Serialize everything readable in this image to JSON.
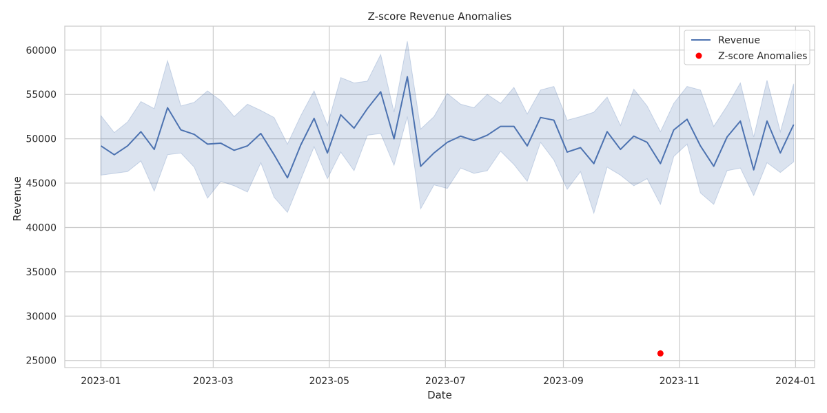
{
  "chart_data": {
    "type": "line",
    "title": "Z-score Revenue Anomalies",
    "xlabel": "Date",
    "ylabel": "Revenue",
    "ylim": [
      24200,
      62700
    ],
    "xlim": [
      "2022-12-13",
      "2024-01-11"
    ],
    "grid": true,
    "legend_position": "top-right",
    "colors": {
      "line": "#4c72b0",
      "band": "#4c72b0",
      "anomaly": "#ff0000",
      "frame": "#cccccc",
      "grid": "#cccccc"
    },
    "x_ticks": [
      {
        "value": "2023-01-01",
        "label": "2023-01"
      },
      {
        "value": "2023-03-01",
        "label": "2023-03"
      },
      {
        "value": "2023-05-01",
        "label": "2023-05"
      },
      {
        "value": "2023-07-01",
        "label": "2023-07"
      },
      {
        "value": "2023-09-01",
        "label": "2023-09"
      },
      {
        "value": "2023-11-01",
        "label": "2023-11"
      },
      {
        "value": "2024-01-01",
        "label": "2024-01"
      }
    ],
    "y_ticks": [
      {
        "value": 25000,
        "label": "25000"
      },
      {
        "value": 30000,
        "label": "30000"
      },
      {
        "value": 35000,
        "label": "35000"
      },
      {
        "value": 40000,
        "label": "40000"
      },
      {
        "value": 45000,
        "label": "45000"
      },
      {
        "value": 50000,
        "label": "50000"
      },
      {
        "value": 55000,
        "label": "55000"
      },
      {
        "value": 60000,
        "label": "60000"
      }
    ],
    "x": [
      "2023-01-01",
      "2023-01-08",
      "2023-01-15",
      "2023-01-22",
      "2023-01-29",
      "2023-02-05",
      "2023-02-12",
      "2023-02-19",
      "2023-02-26",
      "2023-03-05",
      "2023-03-12",
      "2023-03-19",
      "2023-03-26",
      "2023-04-02",
      "2023-04-09",
      "2023-04-16",
      "2023-04-23",
      "2023-04-30",
      "2023-05-07",
      "2023-05-14",
      "2023-05-21",
      "2023-05-28",
      "2023-06-04",
      "2023-06-11",
      "2023-06-18",
      "2023-06-25",
      "2023-07-02",
      "2023-07-09",
      "2023-07-16",
      "2023-07-23",
      "2023-07-30",
      "2023-08-06",
      "2023-08-13",
      "2023-08-20",
      "2023-08-27",
      "2023-09-03",
      "2023-09-10",
      "2023-09-17",
      "2023-09-24",
      "2023-10-01",
      "2023-10-08",
      "2023-10-15",
      "2023-10-22",
      "2023-10-29",
      "2023-11-05",
      "2023-11-12",
      "2023-11-19",
      "2023-11-26",
      "2023-12-03",
      "2023-12-10",
      "2023-12-17",
      "2023-12-24",
      "2023-12-31"
    ],
    "series": [
      {
        "name": "Revenue",
        "values": [
          49200,
          48200,
          49200,
          50800,
          48800,
          53500,
          51000,
          50500,
          49400,
          49500,
          48700,
          49200,
          50600,
          48200,
          45600,
          49300,
          52300,
          48400,
          52700,
          51200,
          53400,
          55300,
          50000,
          57000,
          46900,
          48400,
          49600,
          50300,
          49800,
          50400,
          51400,
          51400,
          49200,
          52400,
          52100,
          48500,
          49000,
          47200,
          50800,
          48800,
          50300,
          49600,
          47200,
          51000,
          52200,
          49200,
          46900,
          50200,
          52000,
          46500,
          52000,
          48400,
          51600
        ],
        "lower": [
          45900,
          46100,
          46300,
          47500,
          44100,
          48200,
          48400,
          46800,
          43300,
          45200,
          44700,
          44000,
          47300,
          43400,
          41700,
          45400,
          49100,
          45500,
          48500,
          46400,
          50400,
          50600,
          47000,
          52500,
          42100,
          44800,
          44400,
          46700,
          46100,
          46400,
          48600,
          47100,
          45200,
          49600,
          47600,
          44300,
          46300,
          41600,
          46800,
          45900,
          44700,
          45500,
          42600,
          48000,
          49400,
          43900,
          42600,
          46400,
          46700,
          43600,
          47300,
          46200,
          47400
        ],
        "upper": [
          52600,
          50700,
          51900,
          54200,
          53400,
          58800,
          53700,
          54100,
          55400,
          54300,
          52500,
          53900,
          53200,
          52400,
          49400,
          52600,
          55400,
          51500,
          56900,
          56300,
          56500,
          59500,
          53000,
          61000,
          51100,
          52500,
          55100,
          53900,
          53500,
          55000,
          54000,
          55800,
          52800,
          55500,
          55900,
          52100,
          52500,
          53000,
          54700,
          51500,
          55600,
          53700,
          50800,
          54000,
          55900,
          55500,
          51400,
          53700,
          56300,
          50200,
          56600,
          50800,
          56200
        ]
      },
      {
        "name": "Z-score Anomalies",
        "type": "scatter",
        "points": [
          {
            "x": "2023-10-22",
            "y": 25800
          }
        ]
      }
    ]
  }
}
